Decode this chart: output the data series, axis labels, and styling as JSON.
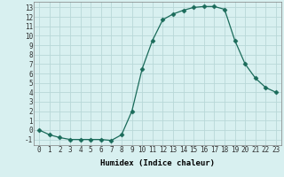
{
  "x": [
    0,
    1,
    2,
    3,
    4,
    5,
    6,
    7,
    8,
    9,
    10,
    11,
    12,
    13,
    14,
    15,
    16,
    17,
    18,
    19,
    20,
    21,
    22,
    23
  ],
  "y": [
    0,
    -0.5,
    -0.8,
    -1.0,
    -1.0,
    -1.0,
    -1.0,
    -1.1,
    -0.5,
    2.0,
    6.5,
    9.5,
    11.7,
    12.3,
    12.7,
    13.0,
    13.1,
    13.1,
    12.8,
    9.5,
    7.0,
    5.5,
    4.5,
    4.0
  ],
  "line_color": "#1a6b5a",
  "marker": "D",
  "marker_size": 2.5,
  "background_color": "#d8f0f0",
  "grid_color": "#b8d8d8",
  "xlabel": "Humidex (Indice chaleur)",
  "xlim": [
    -0.5,
    23.5
  ],
  "ylim": [
    -1.6,
    13.6
  ],
  "yticks": [
    -1,
    0,
    1,
    2,
    3,
    4,
    5,
    6,
    7,
    8,
    9,
    10,
    11,
    12,
    13
  ],
  "xticks": [
    0,
    1,
    2,
    3,
    4,
    5,
    6,
    7,
    8,
    9,
    10,
    11,
    12,
    13,
    14,
    15,
    16,
    17,
    18,
    19,
    20,
    21,
    22,
    23
  ],
  "xlabel_fontsize": 6.5,
  "tick_fontsize": 5.5
}
